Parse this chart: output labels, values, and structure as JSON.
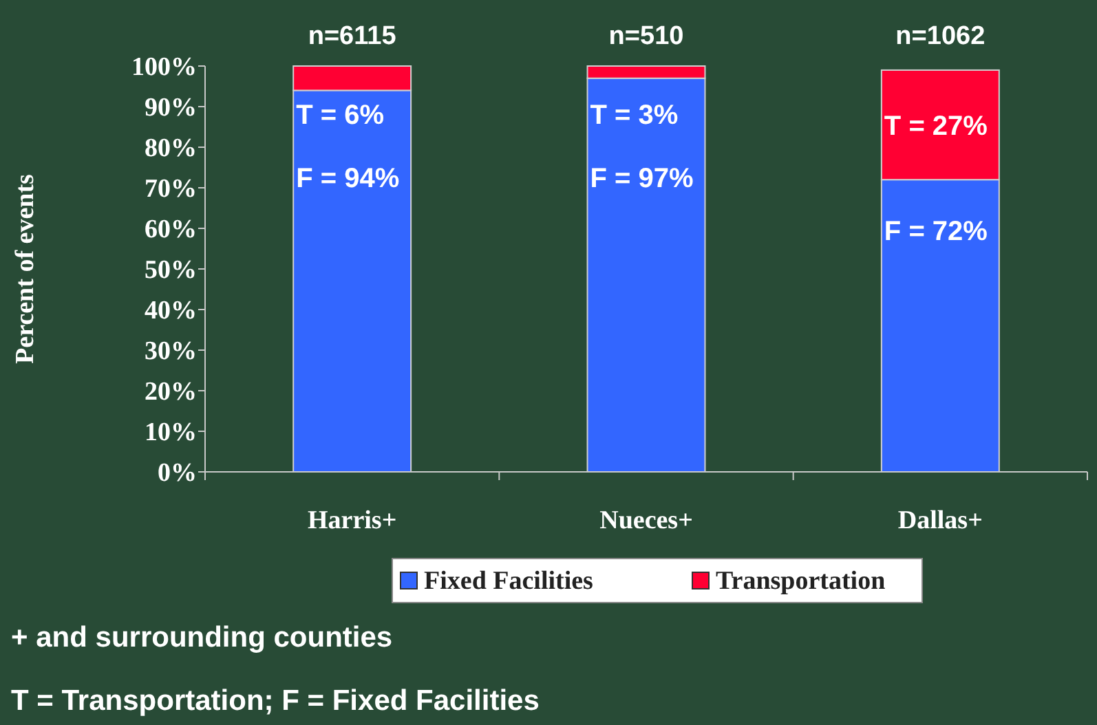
{
  "chart_data": {
    "type": "bar",
    "stacked": true,
    "ylabel": "Percent of events",
    "categories": [
      "Harris+",
      "Nueces+",
      "Dallas+"
    ],
    "series": [
      {
        "name": "Fixed Facilities",
        "color": "#3366ff",
        "values": [
          94,
          97,
          72
        ],
        "value_labels": [
          "F = 94%",
          "F = 97%",
          "F = 72%"
        ]
      },
      {
        "name": "Transportation",
        "color": "#ff0033",
        "values": [
          6,
          3,
          27
        ],
        "value_labels": [
          "T = 6%",
          "T = 3%",
          "T = 27%"
        ]
      }
    ],
    "ylim": [
      0,
      100
    ],
    "yticks": [
      {
        "value": 0,
        "label": "0%"
      },
      {
        "value": 10,
        "label": "10%"
      },
      {
        "value": 20,
        "label": "20%"
      },
      {
        "value": 30,
        "label": "30%"
      },
      {
        "value": 40,
        "label": "40%"
      },
      {
        "value": 50,
        "label": "50%"
      },
      {
        "value": 60,
        "label": "60%"
      },
      {
        "value": 70,
        "label": "70%"
      },
      {
        "value": 80,
        "label": "80%"
      },
      {
        "value": 90,
        "label": "90%"
      },
      {
        "value": 100,
        "label": "100%"
      }
    ],
    "legend": "bottom",
    "annotations": [
      {
        "text": "n=6115",
        "x": "Harris+",
        "y": 100
      },
      {
        "text": "n=510",
        "x": "Nueces+",
        "y": 100
      },
      {
        "text": "n=1062",
        "x": "Dallas+",
        "y": 100
      },
      "+ and surrounding counties",
      "T = Transportation; F = Fixed Facilities"
    ]
  }
}
